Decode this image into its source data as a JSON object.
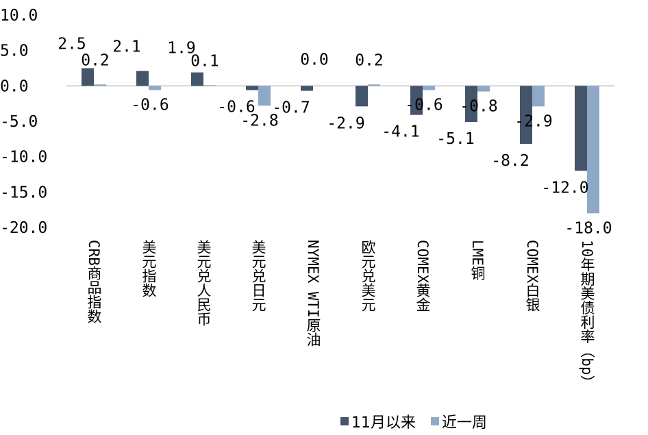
{
  "chart_data": {
    "type": "bar",
    "categories": [
      "CRB商品指数",
      "美元指数",
      "美元兑人民币",
      "美元兑日元",
      "NYMEX WTI原油",
      "欧元兑美元",
      "COMEX黄金",
      "LME铜",
      "COMEX白银",
      "10年期美债利率（bp）"
    ],
    "series": [
      {
        "name": "11月以来",
        "color": "#44546A",
        "values": [
          2.5,
          2.1,
          1.9,
          -0.6,
          -0.7,
          -2.9,
          -4.1,
          -5.1,
          -8.2,
          -12.0
        ]
      },
      {
        "name": "近一周",
        "color": "#8EA9C8",
        "values": [
          0.2,
          -0.6,
          0.1,
          -2.8,
          0.0,
          0.2,
          -0.6,
          -0.8,
          -2.9,
          -18.0
        ]
      }
    ],
    "ylim": [
      -20,
      10
    ],
    "yticks": [
      "10.0",
      "5.0",
      "0.0",
      "-5.0",
      "-10.0",
      "-15.0",
      "-20.0"
    ],
    "ytick_values": [
      10,
      5,
      0,
      -5,
      -10,
      -15,
      -20
    ],
    "grid": false,
    "legend_position": "bottom",
    "title": "",
    "xlabel": "",
    "ylabel": ""
  }
}
